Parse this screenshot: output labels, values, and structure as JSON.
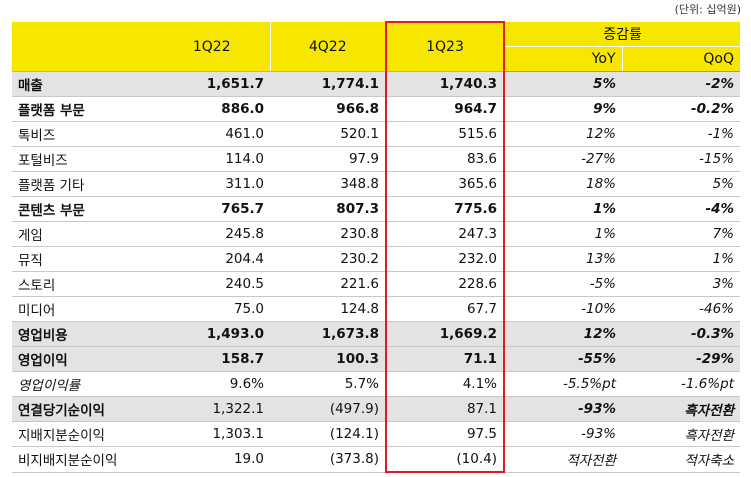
{
  "unit_note": "(단위: 십억원)",
  "header": {
    "periods": [
      "1Q22",
      "4Q22",
      "1Q23"
    ],
    "change_group": "증감률",
    "change_cols": [
      "YoY",
      "QoQ"
    ]
  },
  "rows": [
    {
      "label": "매출",
      "q122": "1,651.7",
      "q422": "1,774.1",
      "q123": "1,740.3",
      "yoy": "5%",
      "qoq": "-2%"
    },
    {
      "label": "플랫폼 부문",
      "q122": "886.0",
      "q422": "966.8",
      "q123": "964.7",
      "yoy": "9%",
      "qoq": "-0.2%"
    },
    {
      "label": "톡비즈",
      "q122": "461.0",
      "q422": "520.1",
      "q123": "515.6",
      "yoy": "12%",
      "qoq": "-1%"
    },
    {
      "label": "포털비즈",
      "q122": "114.0",
      "q422": "97.9",
      "q123": "83.6",
      "yoy": "-27%",
      "qoq": "-15%"
    },
    {
      "label": "플랫폼 기타",
      "q122": "311.0",
      "q422": "348.8",
      "q123": "365.6",
      "yoy": "18%",
      "qoq": "5%"
    },
    {
      "label": "콘텐츠 부문",
      "q122": "765.7",
      "q422": "807.3",
      "q123": "775.6",
      "yoy": "1%",
      "qoq": "-4%"
    },
    {
      "label": "게임",
      "q122": "245.8",
      "q422": "230.8",
      "q123": "247.3",
      "yoy": "1%",
      "qoq": "7%"
    },
    {
      "label": "뮤직",
      "q122": "204.4",
      "q422": "230.2",
      "q123": "232.0",
      "yoy": "13%",
      "qoq": "1%"
    },
    {
      "label": "스토리",
      "q122": "240.5",
      "q422": "221.6",
      "q123": "228.6",
      "yoy": "-5%",
      "qoq": "3%"
    },
    {
      "label": "미디어",
      "q122": "75.0",
      "q422": "124.8",
      "q123": "67.7",
      "yoy": "-10%",
      "qoq": "-46%"
    },
    {
      "label": "영업비용",
      "q122": "1,493.0",
      "q422": "1,673.8",
      "q123": "1,669.2",
      "yoy": "12%",
      "qoq": "-0.3%"
    },
    {
      "label": "영업이익",
      "q122": "158.7",
      "q422": "100.3",
      "q123": "71.1",
      "yoy": "-55%",
      "qoq": "-29%"
    },
    {
      "label": "영업이익률",
      "q122": "9.6%",
      "q422": "5.7%",
      "q123": "4.1%",
      "yoy": "-5.5%pt",
      "qoq": "-1.6%pt"
    },
    {
      "label": "연결당기순이익",
      "q122": "1,322.1",
      "q422": "(497.9)",
      "q123": "87.1",
      "yoy": "-93%",
      "qoq": "흑자전환"
    },
    {
      "label": "지배지분순이익",
      "q122": "1,303.1",
      "q422": "(124.1)",
      "q123": "97.5",
      "yoy": "-93%",
      "qoq": "흑자전환"
    },
    {
      "label": "비지배지분순이익",
      "q122": "19.0",
      "q422": "(373.8)",
      "q123": "(10.4)",
      "yoy": "적자전환",
      "qoq": "적자축소"
    }
  ]
}
